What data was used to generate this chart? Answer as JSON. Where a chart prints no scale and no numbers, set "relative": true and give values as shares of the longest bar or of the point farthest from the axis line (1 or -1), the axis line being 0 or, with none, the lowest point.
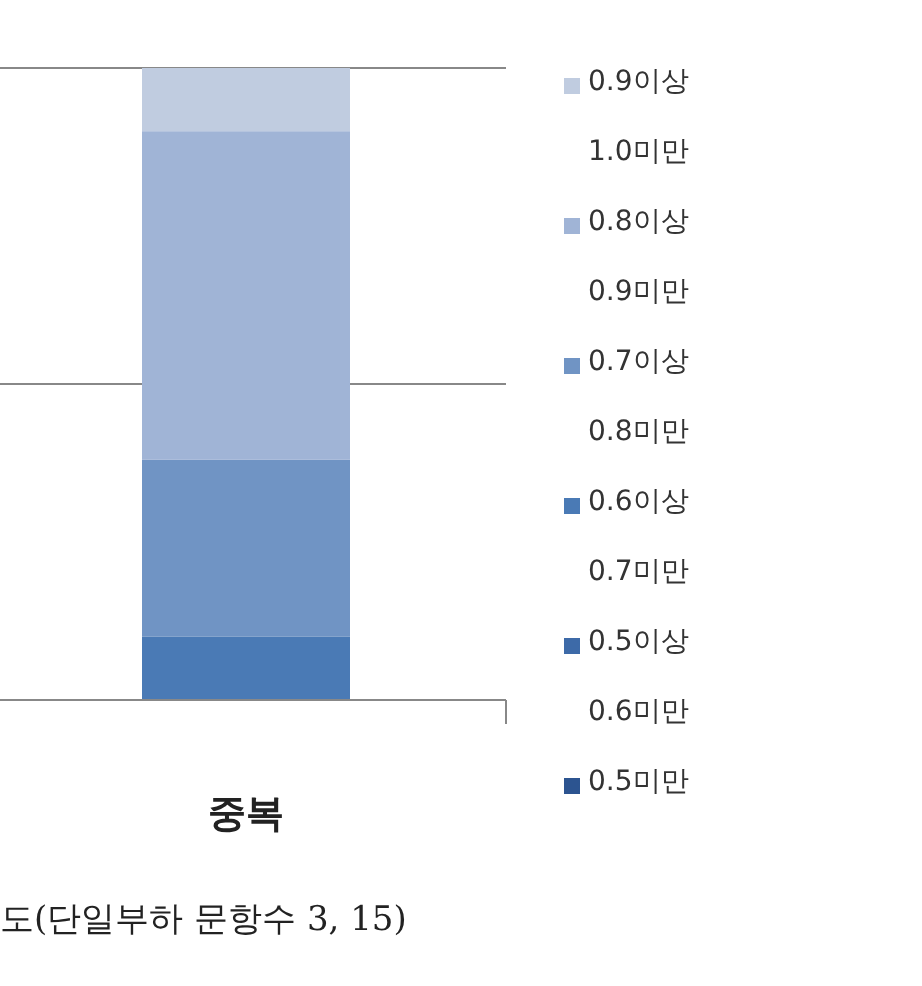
{
  "chart_data": {
    "type": "bar",
    "stacked": true,
    "relative": true,
    "ref_lines": [
      {
        "axis": "y",
        "value": 0.5,
        "color": "#888888"
      },
      {
        "axis": "y",
        "value": 1,
        "color": "#888888"
      }
    ],
    "legend": "right",
    "categories": [
      "중복"
    ],
    "series": [
      {
        "name": "0.5미만",
        "color": "#2c5490",
        "values": [
          0
        ]
      },
      {
        "name": "0.5이상 0.6미만",
        "color": "#3d6aa8",
        "values": [
          0
        ]
      },
      {
        "name": "0.6이상 0.7미만",
        "color": "#4a7ab5",
        "values": [
          0.1
        ]
      },
      {
        "name": "0.7이상 0.8미만",
        "color": "#7094c4",
        "values": [
          0.28
        ]
      },
      {
        "name": "0.8이상 0.9미만",
        "color": "#a0b4d6",
        "values": [
          0.52
        ]
      },
      {
        "name": "0.9이상 1.0미만",
        "color": "#c0cce0",
        "values": [
          0.1
        ]
      }
    ],
    "annotations": [
      "도(단일부하 문항수 3, 15)"
    ]
  }
}
